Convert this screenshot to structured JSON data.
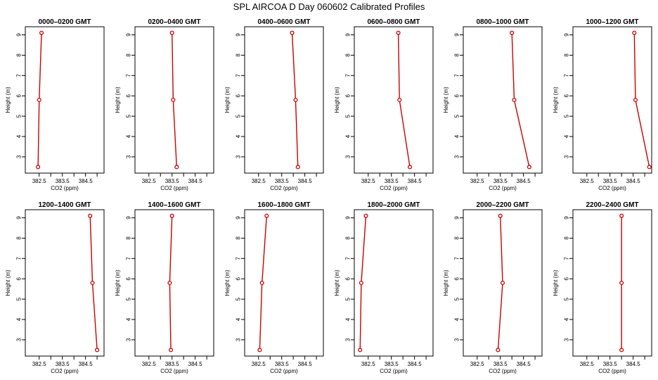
{
  "title": "SPL AIRCOA D  Day 060602  Calibrated Profiles",
  "chart_data": {
    "type": "line",
    "xlabel": "CO2 (ppm)",
    "ylabel": "Height (m)",
    "xlim": [
      381.9,
      385.3
    ],
    "ylim": [
      2.2,
      9.4
    ],
    "x_ticks": [
      382.5,
      383.5,
      384.5
    ],
    "x_tick_labels": [
      "382.5",
      "383.5",
      "384.5"
    ],
    "y_ticks": [
      3,
      4,
      5,
      6,
      7,
      8,
      9
    ],
    "y_tick_labels": [
      "3",
      "4",
      "5",
      "6",
      "7",
      "8",
      "9"
    ],
    "heights": [
      2.5,
      5.8,
      9.1
    ],
    "line_color": "#cc0000",
    "panels": [
      {
        "title": "0000–0200 GMT",
        "co2": [
          382.45,
          382.5,
          382.6
        ]
      },
      {
        "title": "0200–0400 GMT",
        "co2": [
          383.7,
          383.55,
          383.5
        ]
      },
      {
        "title": "0400–0600 GMT",
        "co2": [
          384.2,
          384.1,
          383.95
        ]
      },
      {
        "title": "0600–0800 GMT",
        "co2": [
          384.3,
          383.85,
          383.8
        ]
      },
      {
        "title": "0800–1000 GMT",
        "co2": [
          384.75,
          384.1,
          384.0
        ]
      },
      {
        "title": "1000–1200 GMT",
        "co2": [
          385.2,
          384.6,
          384.55
        ]
      },
      {
        "title": "1200–1400 GMT",
        "co2": [
          385.0,
          384.8,
          384.7
        ]
      },
      {
        "title": "1400–1600 GMT",
        "co2": [
          383.45,
          383.4,
          383.5
        ]
      },
      {
        "title": "1600–1800 GMT",
        "co2": [
          382.55,
          382.65,
          382.85
        ]
      },
      {
        "title": "1800–2000 GMT",
        "co2": [
          382.15,
          382.2,
          382.4
        ]
      },
      {
        "title": "2000–2200 GMT",
        "co2": [
          383.4,
          383.6,
          383.5
        ]
      },
      {
        "title": "2200–2400 GMT",
        "co2": [
          384.0,
          384.0,
          384.0
        ]
      }
    ]
  }
}
